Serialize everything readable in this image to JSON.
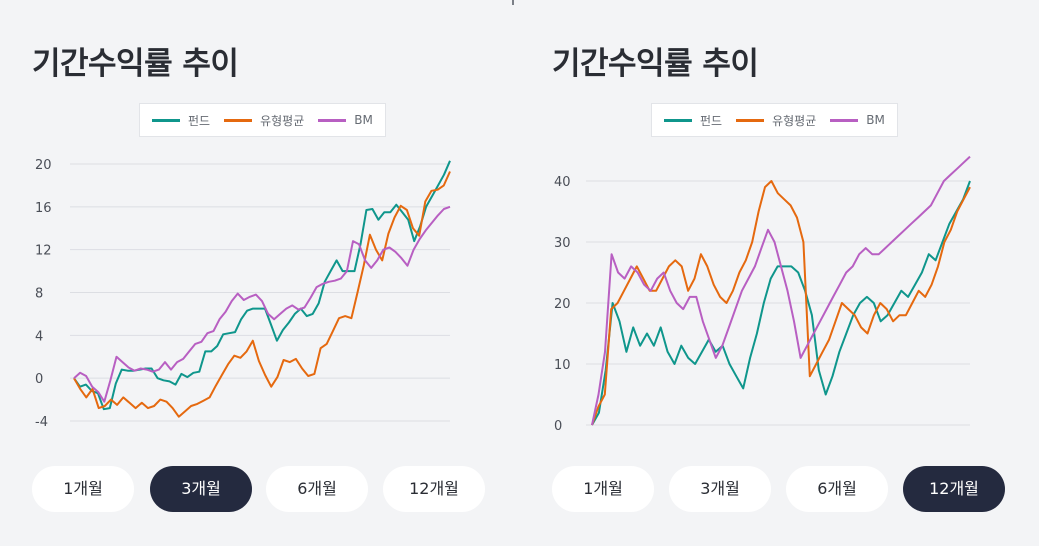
{
  "top_mark": "",
  "panels": [
    {
      "title": "기간수익률 추이",
      "buttons": [
        {
          "label": "1개월",
          "active": false
        },
        {
          "label": "3개월",
          "active": true
        },
        {
          "label": "6개월",
          "active": false
        },
        {
          "label": "12개월",
          "active": false
        }
      ]
    },
    {
      "title": "기간수익률 추이",
      "buttons": [
        {
          "label": "1개월",
          "active": false
        },
        {
          "label": "3개월",
          "active": false
        },
        {
          "label": "6개월",
          "active": false
        },
        {
          "label": "12개월",
          "active": true
        }
      ]
    }
  ],
  "chart_data": [
    {
      "type": "line",
      "title": "기간수익률 추이",
      "period": "3개월",
      "ylim": [
        -4,
        20
      ],
      "yticks": [
        -4,
        0,
        4,
        8,
        12,
        16,
        20
      ],
      "grid": true,
      "legend_position": "top",
      "series": [
        {
          "name": "펀드",
          "color": "#0f968c",
          "values": [
            0,
            -0.8,
            -0.6,
            -1.2,
            -1.4,
            -2.9,
            -2.8,
            -0.5,
            0.8,
            0.7,
            0.7,
            0.8,
            0.9,
            0.9,
            0,
            -0.2,
            -0.3,
            -0.6,
            0.4,
            0.1,
            0.5,
            0.6,
            2.5,
            2.5,
            3,
            4.1,
            4.2,
            4.3,
            5.5,
            6.3,
            6.5,
            6.5,
            6.5,
            5,
            3.5,
            4.5,
            5.2,
            6,
            6.5,
            5.8,
            6,
            7,
            9,
            10,
            11,
            10,
            10,
            10,
            12.5,
            15.7,
            15.8,
            14.8,
            15.5,
            15.5,
            16.2,
            15.5,
            14.8,
            12.8,
            14.2,
            16,
            17,
            18,
            19,
            20.3
          ]
        },
        {
          "name": "유형평균",
          "color": "#e5690f",
          "values": [
            0,
            -1,
            -1.8,
            -1,
            -2.8,
            -2.6,
            -2,
            -2.5,
            -1.8,
            -2.3,
            -2.8,
            -2.3,
            -2.8,
            -2.6,
            -2,
            -2.2,
            -2.8,
            -3.6,
            -3.1,
            -2.6,
            -2.4,
            -2.1,
            -1.8,
            -0.7,
            0.3,
            1.3,
            2.1,
            1.9,
            2.5,
            3.5,
            1.6,
            0.3,
            -0.8,
            0.1,
            1.7,
            1.5,
            1.8,
            0.9,
            0.2,
            0.4,
            2.8,
            3.2,
            4.4,
            5.6,
            5.8,
            5.6,
            8,
            10.5,
            13.4,
            12,
            11,
            13.5,
            15,
            16.1,
            15.7,
            14,
            13.3,
            16.5,
            17.5,
            17.6,
            18,
            19.3
          ]
        },
        {
          "name": "BM",
          "color": "#b85fc2",
          "values": [
            0,
            0.5,
            0.2,
            -0.8,
            -1.3,
            -2.2,
            -0.2,
            2,
            1.5,
            1,
            0.7,
            0.9,
            0.8,
            0.6,
            0.8,
            1.5,
            0.8,
            1.5,
            1.8,
            2.5,
            3.2,
            3.4,
            4.2,
            4.4,
            5.5,
            6.2,
            7.2,
            7.9,
            7.3,
            7.6,
            7.8,
            7.2,
            6,
            5.5,
            6,
            6.5,
            6.8,
            6.4,
            6.6,
            7.5,
            8.5,
            8.8,
            9,
            9.1,
            9.3,
            10,
            12.8,
            12.5,
            11,
            10.3,
            11,
            12,
            12.2,
            11.8,
            11.2,
            10.5,
            12,
            13,
            13.8,
            14.5,
            15.2,
            15.8,
            16
          ]
        }
      ]
    },
    {
      "type": "line",
      "title": "기간수익률 추이",
      "period": "12개월",
      "ylim": [
        0,
        40
      ],
      "yticks": [
        0,
        10,
        20,
        30,
        40
      ],
      "grid": true,
      "legend_position": "top",
      "series": [
        {
          "name": "펀드",
          "color": "#0f968c",
          "values": [
            0,
            2,
            9,
            20,
            17,
            12,
            16,
            13,
            15,
            13,
            16,
            12,
            10,
            13,
            11,
            10,
            12,
            14,
            12,
            13,
            10,
            8,
            6,
            11,
            15,
            20,
            24,
            26,
            26,
            26,
            25,
            22,
            18,
            9,
            5,
            8,
            12,
            15,
            18,
            20,
            21,
            20,
            17,
            18,
            20,
            22,
            21,
            23,
            25,
            28,
            27,
            30,
            33,
            35,
            37,
            40
          ]
        },
        {
          "name": "유형평균",
          "color": "#e5690f",
          "values": [
            0,
            3,
            5,
            19,
            20,
            22,
            24,
            26,
            24,
            22,
            22,
            24,
            26,
            27,
            26,
            22,
            24,
            28,
            26,
            23,
            21,
            20,
            22,
            25,
            27,
            30,
            35,
            39,
            40,
            38,
            37,
            36,
            34,
            30,
            8,
            10,
            12,
            14,
            17,
            20,
            19,
            18,
            16,
            15,
            18,
            20,
            19,
            17,
            18,
            18,
            20,
            22,
            21,
            23,
            26,
            30,
            32,
            35,
            37,
            39
          ]
        },
        {
          "name": "BM",
          "color": "#b85fc2",
          "values": [
            0,
            5,
            12,
            28,
            25,
            24,
            26,
            25,
            23,
            22,
            24,
            25,
            22,
            20,
            19,
            21,
            21,
            17,
            14,
            11,
            13,
            16,
            19,
            22,
            24,
            26,
            29,
            32,
            30,
            26,
            22,
            17,
            11,
            13,
            15,
            17,
            19,
            21,
            23,
            25,
            26,
            28,
            29,
            28,
            28,
            29,
            30,
            31,
            32,
            33,
            34,
            35,
            36,
            38,
            40,
            41,
            42,
            43,
            44
          ]
        }
      ]
    }
  ]
}
